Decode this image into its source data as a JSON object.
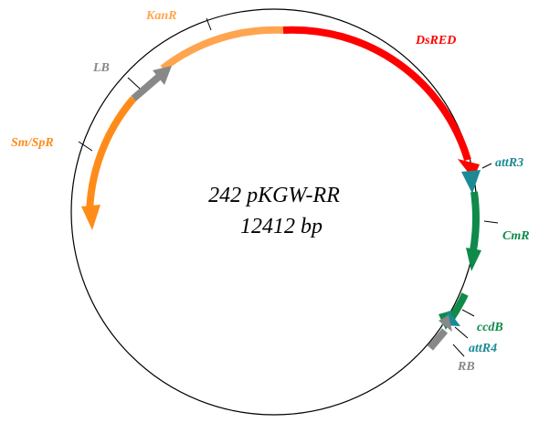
{
  "plasmid": {
    "name": "242 pKGW-RR",
    "size_label": "12412 bp"
  },
  "features": {
    "kanr": {
      "label": "KanR",
      "color": "#ffa54f"
    },
    "dsred": {
      "label": "DsRED",
      "color": "#ff0000"
    },
    "attr3": {
      "label": "attR3",
      "color": "#1a8a94"
    },
    "cmr": {
      "label": "CmR",
      "color": "#0f8a4a"
    },
    "ccdb": {
      "label": "ccdB",
      "color": "#0f8a4a"
    },
    "attr4": {
      "label": "attR4",
      "color": "#1a8a94"
    },
    "rb": {
      "label": "RB",
      "color": "#888888"
    },
    "lb": {
      "label": "LB",
      "color": "#888888"
    },
    "smspr": {
      "label": "Sm/SpR",
      "color": "#ff8c1a"
    }
  }
}
